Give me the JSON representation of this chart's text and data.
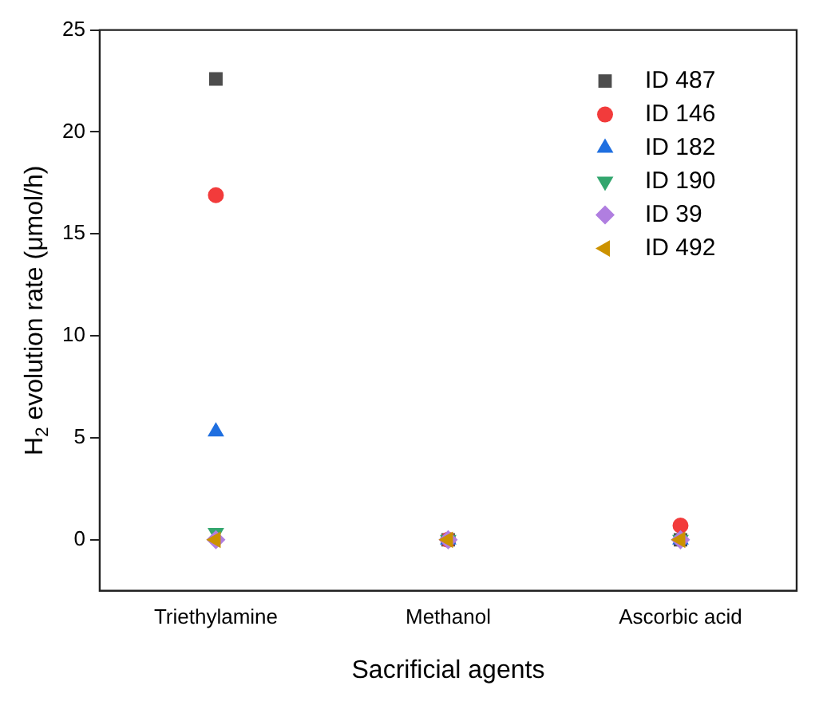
{
  "chart_data": {
    "type": "scatter",
    "xlabel": "Sacrificial agents",
    "ylabel": "H$_{2}$ evolution rate (μmol/h)",
    "categories": [
      "Triethylamine",
      "Methanol",
      "Ascorbic acid"
    ],
    "series": [
      {
        "name": "ID 487",
        "color": "#4d4d4d",
        "marker": "square",
        "values": [
          22.6,
          0,
          0
        ]
      },
      {
        "name": "ID 146",
        "color": "#f23b3b",
        "marker": "circle",
        "values": [
          16.9,
          0,
          0.7
        ]
      },
      {
        "name": "ID 182",
        "color": "#1f6fe0",
        "marker": "triangle",
        "values": [
          5.3,
          0,
          0
        ]
      },
      {
        "name": "ID 190",
        "color": "#33a66e",
        "marker": "triangle-down",
        "values": [
          0.35,
          0,
          0
        ]
      },
      {
        "name": "ID 39",
        "color": "#b07ee0",
        "marker": "diamond",
        "values": [
          0,
          0,
          0
        ]
      },
      {
        "name": "ID 492",
        "color": "#cc9200",
        "marker": "triangle-left",
        "values": [
          0,
          0,
          0
        ]
      }
    ],
    "ylim": [
      -2.5,
      25
    ],
    "yticks": [
      0,
      5,
      10,
      15,
      20,
      25
    ],
    "grid": false,
    "legend": "top right"
  }
}
